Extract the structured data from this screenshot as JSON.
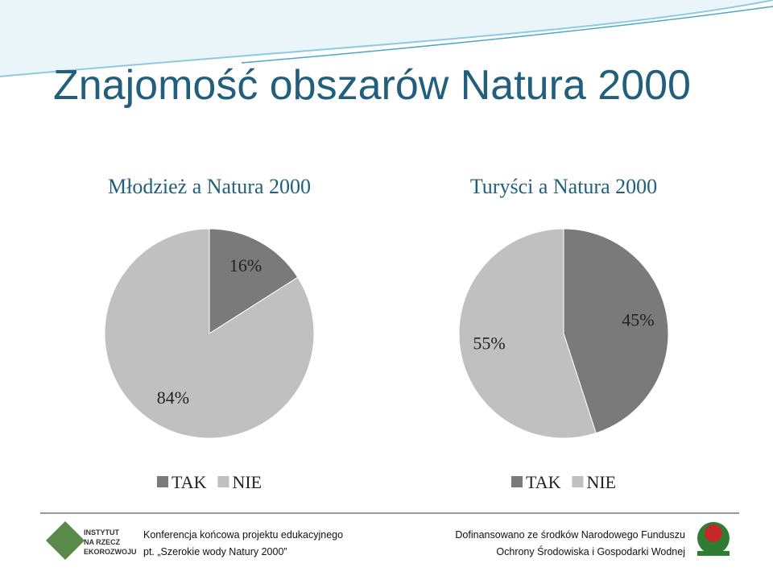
{
  "title": "Znajomość obszarów Natura 2000",
  "chart_data": [
    {
      "type": "pie",
      "title": "Młodzież a Natura 2000",
      "categories": [
        "TAK",
        "NIE"
      ],
      "values": [
        16,
        84
      ],
      "value_labels": [
        "16%",
        "84%"
      ],
      "colors": [
        "#7a7a7a",
        "#c0c0c0"
      ]
    },
    {
      "type": "pie",
      "title": "Turyści a Natura 2000",
      "categories": [
        "TAK",
        "NIE"
      ],
      "values": [
        45,
        55
      ],
      "value_labels": [
        "45%",
        "55%"
      ],
      "colors": [
        "#7a7a7a",
        "#c0c0c0"
      ]
    }
  ],
  "footer": {
    "logo_lines": [
      "INSTYTUT",
      "NA RZECZ",
      "EKOROZWOJU"
    ],
    "left": [
      "Konferencja końcowa projektu edukacyjnego",
      "pt. „Szerokie wody Natury 2000”"
    ],
    "right": [
      "Dofinansowano ze środków Narodowego Funduszu",
      "Ochrony Środowiska i Gospodarki Wodnej"
    ]
  }
}
